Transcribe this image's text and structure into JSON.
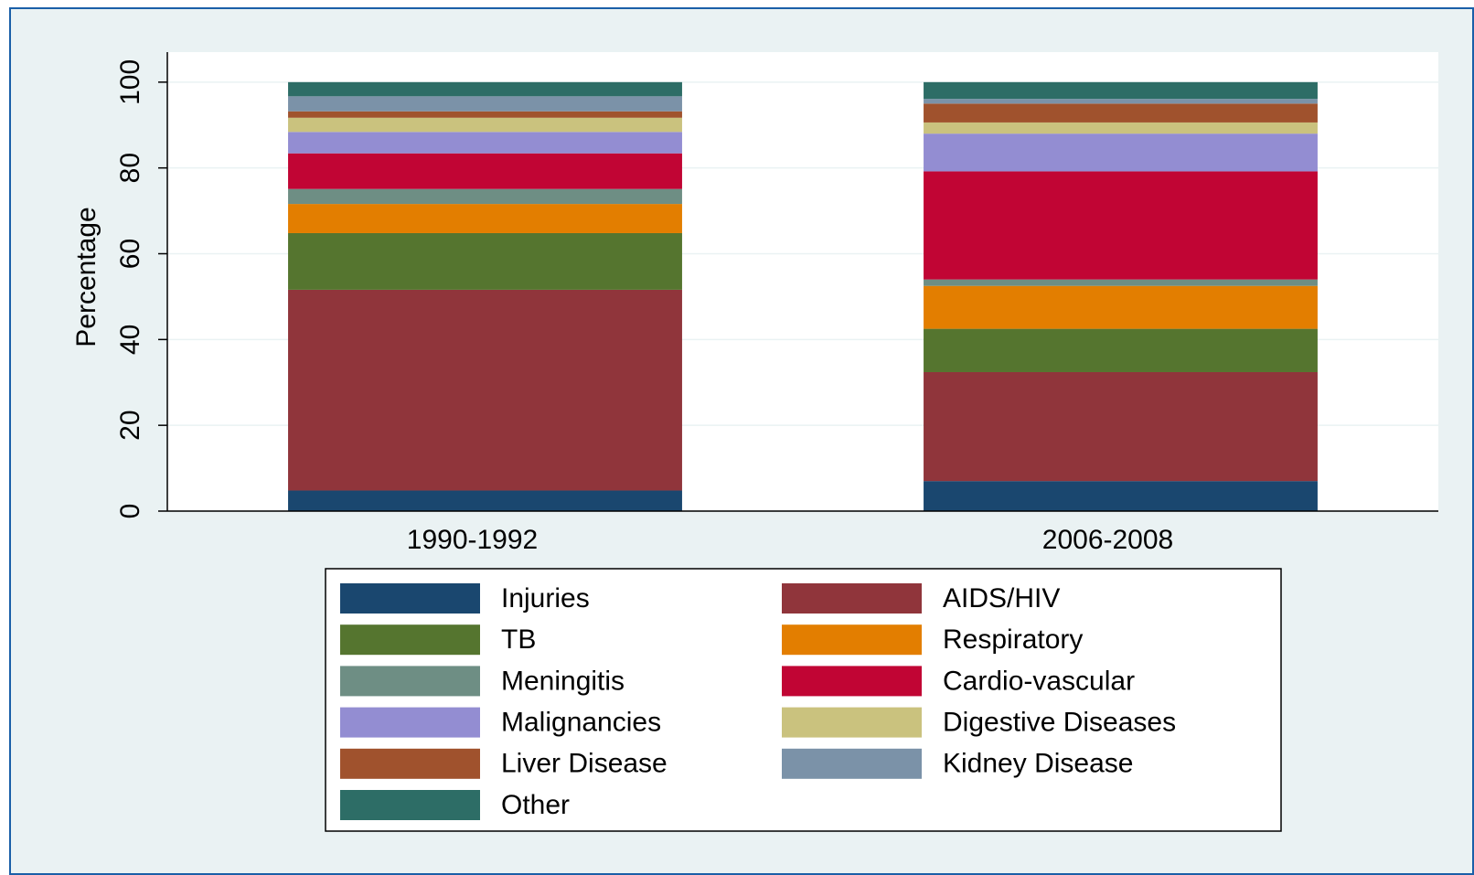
{
  "chart_data": {
    "type": "stacked_bar",
    "y_label": "Percentage",
    "categories": [
      "1990-1992",
      "2006-2008"
    ],
    "series": [
      {
        "name": "Injuries",
        "color": "#1a476f",
        "values": [
          4.8,
          7.0
        ]
      },
      {
        "name": "AIDS/HIV",
        "color": "#90353b",
        "values": [
          46.8,
          25.4
        ]
      },
      {
        "name": "TB",
        "color": "#55752f",
        "values": [
          13.2,
          10.1
        ]
      },
      {
        "name": "Respiratory",
        "color": "#e37e00",
        "values": [
          6.8,
          10.0
        ]
      },
      {
        "name": "Meningitis",
        "color": "#6e8e84",
        "values": [
          3.5,
          1.5
        ]
      },
      {
        "name": "Cardio-vascular",
        "color": "#c10534",
        "values": [
          8.3,
          25.2
        ]
      },
      {
        "name": "Malignancies",
        "color": "#938dd2",
        "values": [
          5.0,
          8.8
        ]
      },
      {
        "name": "Digestive Diseases",
        "color": "#cac27e",
        "values": [
          3.3,
          2.6
        ]
      },
      {
        "name": "Liver Disease",
        "color": "#a0522d",
        "values": [
          1.5,
          4.4
        ]
      },
      {
        "name": "Kidney Disease",
        "color": "#7b92a8",
        "values": [
          3.5,
          1.1
        ]
      },
      {
        "name": "Other",
        "color": "#2d6d66",
        "values": [
          3.3,
          3.9
        ]
      }
    ],
    "ylim": [
      0,
      107
    ],
    "yticks": [
      0,
      20,
      40,
      60,
      80,
      100
    ],
    "grid": true,
    "legend": "bottom"
  }
}
